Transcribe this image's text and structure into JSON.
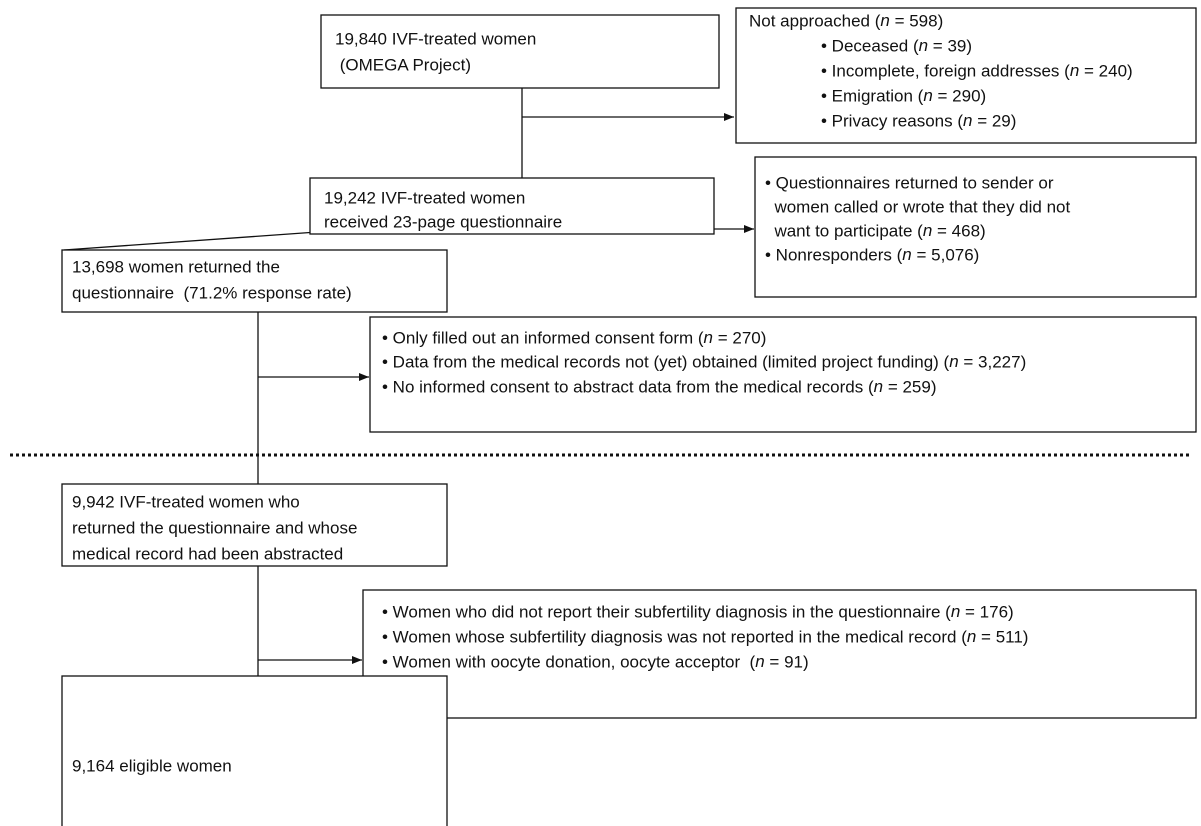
{
  "nodes": [
    {
      "lines": [
        "19,840 IVF-treated women",
        " (OMEGA Project)"
      ]
    },
    {
      "lines": [
        "Not approached (n = 598)",
        "• Deceased (n = 39)",
        "• Incomplete, foreign addresses (n = 240)",
        "• Emigration (n = 290)",
        "• Privacy reasons (n = 29)"
      ]
    },
    {
      "lines": [
        "19,242 IVF-treated women",
        "received 23-page questionnaire"
      ]
    },
    {
      "lines": [
        "• Questionnaires returned to sender or",
        "  women called or wrote that they did not",
        "  want to participate (n = 468)",
        "• Nonresponders (n = 5,076)"
      ]
    },
    {
      "lines": [
        "13,698 women returned the",
        "questionnaire  (71.2% response rate)"
      ]
    },
    {
      "lines": [
        "• Only filled out an informed consent form (n = 270)",
        "• Data from the medical records not (yet) obtained (limited project funding) (n = 3,227)",
        "• No informed consent to abstract data from the medical records (n = 259)"
      ]
    },
    {
      "lines": [
        "9,942 IVF-treated women who",
        "returned the questionnaire and whose",
        "medical record had been abstracted"
      ]
    },
    {
      "lines": [
        "• Women who did not report their subfertility diagnosis in the questionnaire (n = 176)",
        "• Women whose subfertility diagnosis was not reported in the medical record (n = 511)",
        "• Women with oocyte donation, oocyte acceptor  (n = 91)"
      ]
    },
    {
      "lines": [
        "9,164 eligible women"
      ]
    }
  ]
}
